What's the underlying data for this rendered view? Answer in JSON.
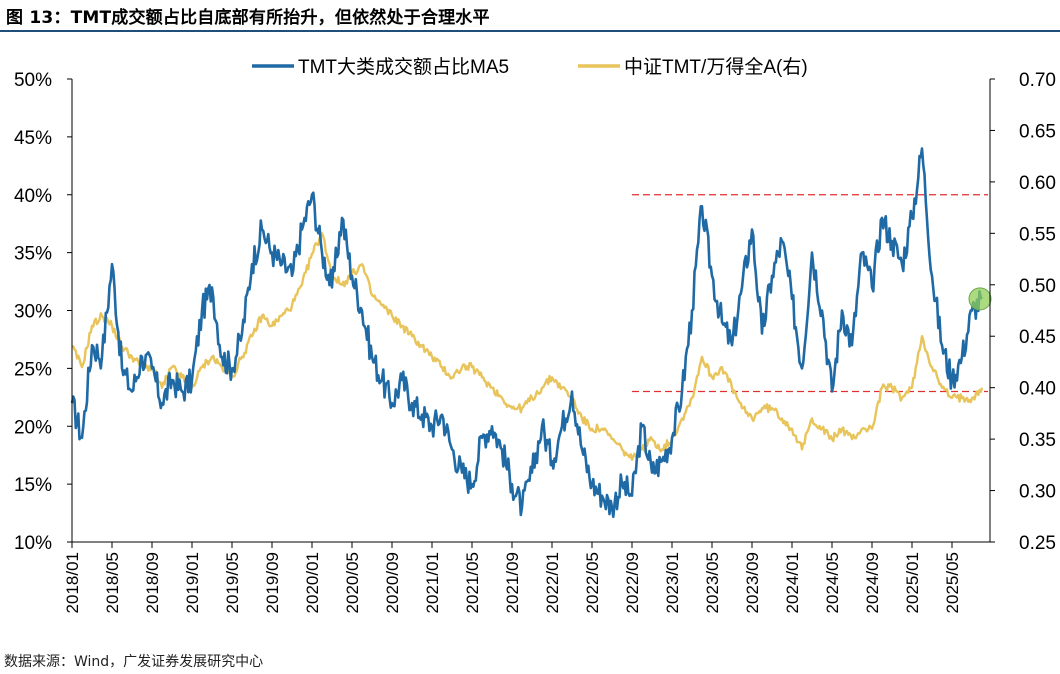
{
  "figure": {
    "title": "图 13：TMT成交额占比自底部有所抬升，但依然处于合理水平",
    "source": "数据来源：Wind，广发证券发展研究中心"
  },
  "chart_data": {
    "type": "line",
    "title": "",
    "legend_position": "top",
    "grid": false,
    "x_ticks": [
      "2018/01",
      "2018/05",
      "2018/09",
      "2019/01",
      "2019/05",
      "2019/09",
      "2020/01",
      "2020/05",
      "2020/09",
      "2021/01",
      "2021/05",
      "2021/09",
      "2022/01",
      "2022/05",
      "2022/09",
      "2023/01",
      "2023/05",
      "2023/09",
      "2024/01",
      "2024/05",
      "2024/09",
      "2025/01",
      "2025/05"
    ],
    "x_range": [
      "2018/01",
      "2025/08"
    ],
    "y_left": {
      "min": 0.1,
      "max": 0.5,
      "ticks": [
        "10%",
        "15%",
        "20%",
        "25%",
        "30%",
        "35%",
        "40%",
        "45%",
        "50%"
      ]
    },
    "y_right": {
      "min": 0.25,
      "max": 0.7,
      "ticks": [
        "0.25",
        "0.30",
        "0.35",
        "0.40",
        "0.45",
        "0.50",
        "0.55",
        "0.60",
        "0.65",
        "0.70"
      ]
    },
    "series": [
      {
        "name": "TMT大类成交额占比MA5",
        "axis": "left",
        "color": "#1f6aa5",
        "points": [
          [
            "2018/01",
            0.22
          ],
          [
            "2018/02",
            0.19
          ],
          [
            "2018/03",
            0.27
          ],
          [
            "2018/04",
            0.26
          ],
          [
            "2018/05",
            0.34
          ],
          [
            "2018/06",
            0.25
          ],
          [
            "2018/07",
            0.23
          ],
          [
            "2018/08",
            0.26
          ],
          [
            "2018/09",
            0.25
          ],
          [
            "2018/10",
            0.22
          ],
          [
            "2018/11",
            0.24
          ],
          [
            "2018/12",
            0.23
          ],
          [
            "2019/01",
            0.24
          ],
          [
            "2019/02",
            0.3
          ],
          [
            "2019/03",
            0.32
          ],
          [
            "2019/04",
            0.26
          ],
          [
            "2019/05",
            0.25
          ],
          [
            "2019/06",
            0.28
          ],
          [
            "2019/07",
            0.34
          ],
          [
            "2019/08",
            0.37
          ],
          [
            "2019/09",
            0.35
          ],
          [
            "2019/10",
            0.34
          ],
          [
            "2019/11",
            0.33
          ],
          [
            "2019/12",
            0.37
          ],
          [
            "2020/01",
            0.4
          ],
          [
            "2020/02",
            0.35
          ],
          [
            "2020/03",
            0.32
          ],
          [
            "2020/04",
            0.38
          ],
          [
            "2020/05",
            0.33
          ],
          [
            "2020/06",
            0.3
          ],
          [
            "2020/07",
            0.26
          ],
          [
            "2020/08",
            0.24
          ],
          [
            "2020/09",
            0.22
          ],
          [
            "2020/10",
            0.24
          ],
          [
            "2020/11",
            0.22
          ],
          [
            "2020/12",
            0.21
          ],
          [
            "2021/01",
            0.2
          ],
          [
            "2021/02",
            0.21
          ],
          [
            "2021/03",
            0.18
          ],
          [
            "2021/04",
            0.16
          ],
          [
            "2021/05",
            0.15
          ],
          [
            "2021/06",
            0.19
          ],
          [
            "2021/07",
            0.2
          ],
          [
            "2021/08",
            0.18
          ],
          [
            "2021/09",
            0.15
          ],
          [
            "2021/10",
            0.13
          ],
          [
            "2021/11",
            0.16
          ],
          [
            "2021/12",
            0.2
          ],
          [
            "2022/01",
            0.17
          ],
          [
            "2022/02",
            0.2
          ],
          [
            "2022/03",
            0.23
          ],
          [
            "2022/04",
            0.18
          ],
          [
            "2022/05",
            0.15
          ],
          [
            "2022/06",
            0.14
          ],
          [
            "2022/07",
            0.13
          ],
          [
            "2022/08",
            0.15
          ],
          [
            "2022/09",
            0.14
          ],
          [
            "2022/10",
            0.2
          ],
          [
            "2022/11",
            0.16
          ],
          [
            "2022/12",
            0.17
          ],
          [
            "2023/01",
            0.19
          ],
          [
            "2023/02",
            0.23
          ],
          [
            "2023/03",
            0.3
          ],
          [
            "2023/04",
            0.39
          ],
          [
            "2023/05",
            0.33
          ],
          [
            "2023/06",
            0.29
          ],
          [
            "2023/07",
            0.27
          ],
          [
            "2023/08",
            0.32
          ],
          [
            "2023/09",
            0.37
          ],
          [
            "2023/10",
            0.28
          ],
          [
            "2023/11",
            0.33
          ],
          [
            "2023/12",
            0.36
          ],
          [
            "2024/01",
            0.31
          ],
          [
            "2024/02",
            0.25
          ],
          [
            "2024/03",
            0.35
          ],
          [
            "2024/04",
            0.3
          ],
          [
            "2024/05",
            0.23
          ],
          [
            "2024/06",
            0.3
          ],
          [
            "2024/07",
            0.27
          ],
          [
            "2024/08",
            0.35
          ],
          [
            "2024/09",
            0.32
          ],
          [
            "2024/10",
            0.38
          ],
          [
            "2024/11",
            0.36
          ],
          [
            "2024/12",
            0.34
          ],
          [
            "2025/01",
            0.38
          ],
          [
            "2025/02",
            0.44
          ],
          [
            "2025/03",
            0.33
          ],
          [
            "2025/04",
            0.27
          ],
          [
            "2025/05",
            0.24
          ],
          [
            "2025/06",
            0.26
          ],
          [
            "2025/07",
            0.3
          ],
          [
            "2025/08",
            0.31
          ]
        ]
      },
      {
        "name": "中证TMT/万得全A(右)",
        "axis": "right",
        "color": "#e8c45a",
        "points": [
          [
            "2018/01",
            0.44
          ],
          [
            "2018/02",
            0.42
          ],
          [
            "2018/03",
            0.46
          ],
          [
            "2018/04",
            0.47
          ],
          [
            "2018/05",
            0.46
          ],
          [
            "2018/06",
            0.44
          ],
          [
            "2018/07",
            0.43
          ],
          [
            "2018/08",
            0.42
          ],
          [
            "2018/09",
            0.42
          ],
          [
            "2018/10",
            0.4
          ],
          [
            "2018/11",
            0.42
          ],
          [
            "2018/12",
            0.41
          ],
          [
            "2019/01",
            0.4
          ],
          [
            "2019/02",
            0.42
          ],
          [
            "2019/03",
            0.43
          ],
          [
            "2019/04",
            0.42
          ],
          [
            "2019/05",
            0.41
          ],
          [
            "2019/06",
            0.43
          ],
          [
            "2019/07",
            0.45
          ],
          [
            "2019/08",
            0.47
          ],
          [
            "2019/09",
            0.46
          ],
          [
            "2019/10",
            0.47
          ],
          [
            "2019/11",
            0.48
          ],
          [
            "2019/12",
            0.5
          ],
          [
            "2020/01",
            0.53
          ],
          [
            "2020/02",
            0.55
          ],
          [
            "2020/03",
            0.51
          ],
          [
            "2020/04",
            0.5
          ],
          [
            "2020/05",
            0.51
          ],
          [
            "2020/06",
            0.52
          ],
          [
            "2020/07",
            0.49
          ],
          [
            "2020/08",
            0.48
          ],
          [
            "2020/09",
            0.47
          ],
          [
            "2020/10",
            0.46
          ],
          [
            "2020/11",
            0.45
          ],
          [
            "2020/12",
            0.44
          ],
          [
            "2021/01",
            0.43
          ],
          [
            "2021/02",
            0.42
          ],
          [
            "2021/03",
            0.41
          ],
          [
            "2021/04",
            0.42
          ],
          [
            "2021/05",
            0.42
          ],
          [
            "2021/06",
            0.41
          ],
          [
            "2021/07",
            0.4
          ],
          [
            "2021/08",
            0.39
          ],
          [
            "2021/09",
            0.38
          ],
          [
            "2021/10",
            0.38
          ],
          [
            "2021/11",
            0.39
          ],
          [
            "2021/12",
            0.4
          ],
          [
            "2022/01",
            0.41
          ],
          [
            "2022/02",
            0.4
          ],
          [
            "2022/03",
            0.39
          ],
          [
            "2022/04",
            0.37
          ],
          [
            "2022/05",
            0.36
          ],
          [
            "2022/06",
            0.36
          ],
          [
            "2022/07",
            0.35
          ],
          [
            "2022/08",
            0.34
          ],
          [
            "2022/09",
            0.33
          ],
          [
            "2022/10",
            0.34
          ],
          [
            "2022/11",
            0.35
          ],
          [
            "2022/12",
            0.34
          ],
          [
            "2023/01",
            0.35
          ],
          [
            "2023/02",
            0.37
          ],
          [
            "2023/03",
            0.39
          ],
          [
            "2023/04",
            0.43
          ],
          [
            "2023/05",
            0.41
          ],
          [
            "2023/06",
            0.42
          ],
          [
            "2023/07",
            0.4
          ],
          [
            "2023/08",
            0.38
          ],
          [
            "2023/09",
            0.37
          ],
          [
            "2023/10",
            0.38
          ],
          [
            "2023/11",
            0.38
          ],
          [
            "2023/12",
            0.37
          ],
          [
            "2024/01",
            0.36
          ],
          [
            "2024/02",
            0.34
          ],
          [
            "2024/03",
            0.37
          ],
          [
            "2024/04",
            0.36
          ],
          [
            "2024/05",
            0.35
          ],
          [
            "2024/06",
            0.36
          ],
          [
            "2024/07",
            0.35
          ],
          [
            "2024/08",
            0.36
          ],
          [
            "2024/09",
            0.36
          ],
          [
            "2024/10",
            0.4
          ],
          [
            "2024/11",
            0.4
          ],
          [
            "2024/12",
            0.39
          ],
          [
            "2025/01",
            0.4
          ],
          [
            "2025/02",
            0.45
          ],
          [
            "2025/03",
            0.42
          ],
          [
            "2025/04",
            0.4
          ],
          [
            "2025/05",
            0.39
          ],
          [
            "2025/06",
            0.39
          ],
          [
            "2025/07",
            0.39
          ],
          [
            "2025/08",
            0.4
          ]
        ]
      }
    ],
    "reference_lines": [
      {
        "axis": "left",
        "value": 0.4,
        "from": "2022/09",
        "to": "2025/08",
        "style": "dashed",
        "color": "#e03030"
      },
      {
        "axis": "left",
        "value": 0.23,
        "from": "2022/09",
        "to": "2025/08",
        "style": "dashed",
        "color": "#e03030"
      }
    ],
    "highlight": {
      "x": "2025/08",
      "value": 0.31,
      "axis": "left",
      "color": "#8fce55"
    }
  }
}
